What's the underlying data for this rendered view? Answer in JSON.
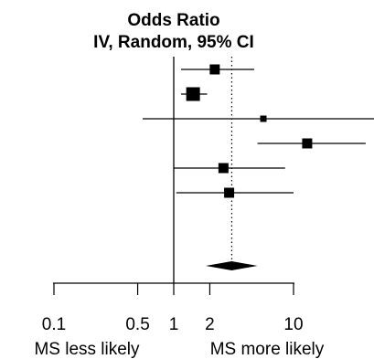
{
  "chart_data": {
    "type": "scatter",
    "title": "Odds Ratio",
    "subtitle": "IV, Random, 95% CI",
    "xlabel_left": "MS less likely",
    "xlabel_right": "MS more likely",
    "scale": "log",
    "xlim": [
      0.027,
      80
    ],
    "ticks": [
      0.1,
      0.5,
      1,
      2,
      10
    ],
    "tick_labels": [
      "0.1",
      "0.5",
      "1",
      "2",
      "10"
    ],
    "reference_line": 1,
    "pooled_estimate_line": 3.05,
    "studies": [
      {
        "or": 2.2,
        "ci_low": 1.15,
        "ci_high": 4.7,
        "weight": "medium"
      },
      {
        "or": 1.45,
        "ci_low": 1.15,
        "ci_high": 1.9,
        "weight": "large"
      },
      {
        "or": 5.6,
        "ci_low": 0.55,
        "ci_high": 70,
        "weight": "small"
      },
      {
        "or": 13,
        "ci_low": 5,
        "ci_high": 40,
        "weight": "medium"
      },
      {
        "or": 2.6,
        "ci_low": 1.0,
        "ci_high": 8.5,
        "weight": "medium"
      },
      {
        "or": 2.9,
        "ci_low": 1.05,
        "ci_high": 10,
        "weight": "medium"
      }
    ],
    "pooled": {
      "or": 3.05,
      "ci_low": 1.85,
      "ci_high": 5.0
    },
    "grid": false
  }
}
